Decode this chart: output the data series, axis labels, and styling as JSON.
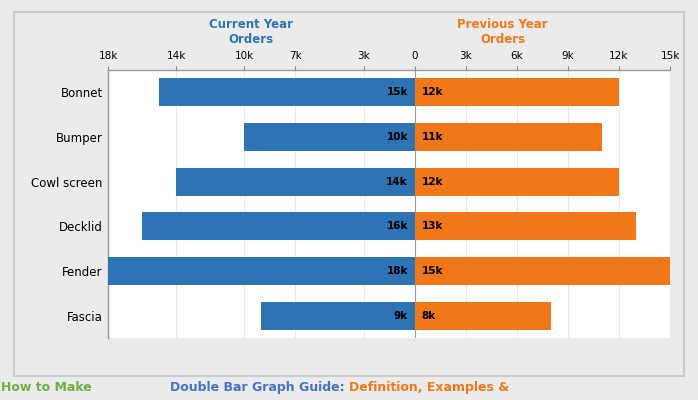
{
  "categories": [
    "Bonnet",
    "Bumper",
    "Cowl screen",
    "Decklid",
    "Fender",
    "Fascia"
  ],
  "current_year": [
    15,
    10,
    14,
    16,
    18,
    9
  ],
  "previous_year": [
    12,
    11,
    12,
    13,
    15,
    8
  ],
  "blue_color": "#2E74B5",
  "orange_color": "#F07818",
  "outer_bg": "#EBEBEB",
  "inner_bg": "#FFFFFF",
  "xlim_left": -18,
  "xlim_right": 15,
  "xticks": [
    -18,
    -14,
    -10,
    -7,
    -3,
    0,
    3,
    6,
    9,
    12,
    15
  ],
  "xtick_labels": [
    "18k",
    "14k",
    "10k",
    "7k",
    "3k",
    "0",
    "3k",
    "6k",
    "9k",
    "12k",
    "15k"
  ],
  "left_label": "Current Year\nOrders",
  "right_label": "Previous Year\nOrders",
  "left_label_color": "#2E74B5",
  "right_label_color": "#F07818",
  "footer_part1": "Double Bar Graph Guide: ",
  "footer_part2": "Definition, Examples & ",
  "footer_part3": "How to Make",
  "footer_color1": "#4472C4",
  "footer_color2": "#F07818",
  "footer_color3": "#70AD47"
}
